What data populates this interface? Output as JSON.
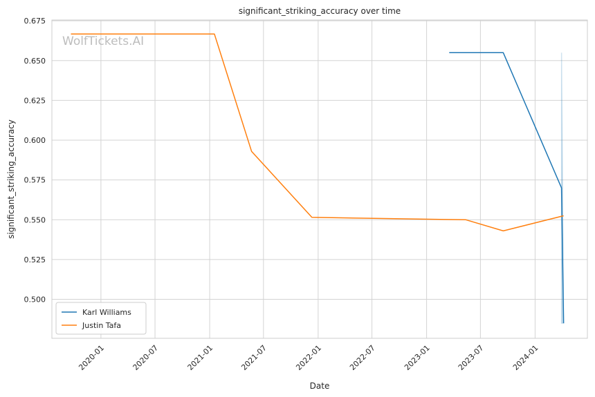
{
  "watermark": "WolfTickets.AI",
  "chart_data": {
    "type": "line",
    "title": "significant_striking_accuracy over time",
    "xlabel": "Date",
    "ylabel": "significant_striking_accuracy",
    "x_axis": "date",
    "xlim": [
      "2019-07-20",
      "2024-06-25"
    ],
    "ylim": [
      0.4755,
      0.6755
    ],
    "x_ticks": [
      "2020-01",
      "2020-07",
      "2021-01",
      "2021-07",
      "2022-01",
      "2022-07",
      "2023-01",
      "2023-07",
      "2024-01"
    ],
    "y_ticks": [
      "0.500",
      "0.525",
      "0.550",
      "0.575",
      "0.600",
      "0.625",
      "0.650",
      "0.675"
    ],
    "grid": true,
    "legend_position": "lower-left",
    "series": [
      {
        "name": "Karl Williams",
        "color": "#1f77b4",
        "points": [
          {
            "x": "2023-03-18",
            "y": 0.655
          },
          {
            "x": "2023-09-16",
            "y": 0.655
          },
          {
            "x": "2024-03-30",
            "y": 0.57
          },
          {
            "x": "2024-04-06",
            "y": 0.485
          }
        ],
        "band": {
          "color": "#1f77b4",
          "opacity": 0.2,
          "points": [
            {
              "x": "2024-03-30",
              "lower": 0.485,
              "upper": 0.655
            },
            {
              "x": "2024-04-06",
              "lower": 0.485,
              "upper": 0.485
            }
          ]
        }
      },
      {
        "name": "Justin Tafa",
        "color": "#ff7f0e",
        "points": [
          {
            "x": "2019-09-22",
            "y": 0.6667
          },
          {
            "x": "2021-01-17",
            "y": 0.6667
          },
          {
            "x": "2021-05-22",
            "y": 0.593
          },
          {
            "x": "2021-12-11",
            "y": 0.5515
          },
          {
            "x": "2023-05-13",
            "y": 0.55
          },
          {
            "x": "2023-09-16",
            "y": 0.543
          },
          {
            "x": "2024-04-06",
            "y": 0.5525
          }
        ]
      }
    ]
  }
}
